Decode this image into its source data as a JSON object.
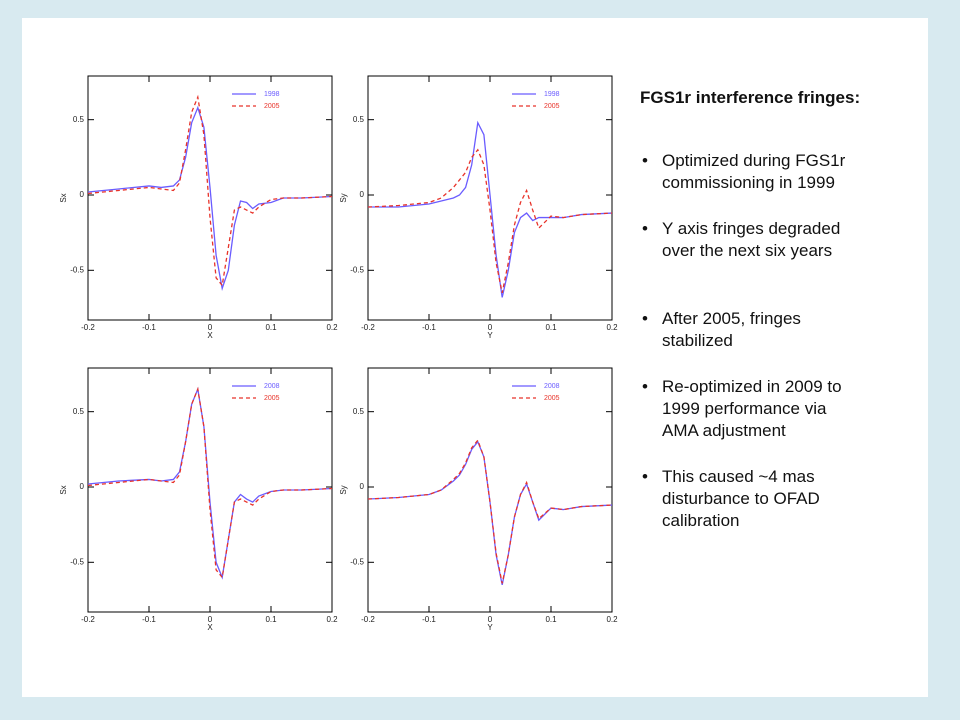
{
  "chart_data": [
    {
      "type": "line",
      "xlabel": "X",
      "ylabel": "Sx",
      "xlim": [
        -0.2,
        0.2
      ],
      "ylim": [
        -0.83,
        0.79
      ],
      "xticks": [
        -0.2,
        -0.1,
        0,
        0.1,
        0.2
      ],
      "yticks": [
        -0.5,
        0,
        0.5
      ],
      "legend": "upper right",
      "x": [
        -0.2,
        -0.15,
        -0.1,
        -0.08,
        -0.06,
        -0.05,
        -0.04,
        -0.03,
        -0.02,
        -0.01,
        0,
        0.01,
        0.02,
        0.03,
        0.04,
        0.05,
        0.06,
        0.07,
        0.08,
        0.1,
        0.12,
        0.15,
        0.2
      ],
      "series": [
        {
          "name": "1998",
          "color": "#6a5cff",
          "dashed": false,
          "values": [
            0.02,
            0.04,
            0.06,
            0.05,
            0.06,
            0.1,
            0.25,
            0.48,
            0.58,
            0.45,
            0.05,
            -0.4,
            -0.62,
            -0.5,
            -0.2,
            -0.04,
            -0.05,
            -0.09,
            -0.06,
            -0.05,
            -0.02,
            -0.02,
            -0.01
          ]
        },
        {
          "name": "2005",
          "color": "#e8332a",
          "dashed": true,
          "values": [
            0.01,
            0.03,
            0.05,
            0.04,
            0.03,
            0.08,
            0.3,
            0.55,
            0.65,
            0.4,
            -0.15,
            -0.55,
            -0.6,
            -0.35,
            -0.1,
            -0.08,
            -0.1,
            -0.12,
            -0.08,
            -0.03,
            -0.02,
            -0.02,
            -0.01
          ]
        }
      ]
    },
    {
      "type": "line",
      "xlabel": "Y",
      "ylabel": "Sy",
      "xlim": [
        -0.2,
        0.2
      ],
      "ylim": [
        -0.83,
        0.79
      ],
      "xticks": [
        -0.2,
        -0.1,
        0,
        0.1,
        0.2
      ],
      "yticks": [
        -0.5,
        0,
        0.5
      ],
      "legend": "upper right",
      "x": [
        -0.2,
        -0.15,
        -0.1,
        -0.08,
        -0.06,
        -0.05,
        -0.04,
        -0.03,
        -0.02,
        -0.01,
        0,
        0.01,
        0.02,
        0.03,
        0.04,
        0.05,
        0.06,
        0.07,
        0.08,
        0.1,
        0.12,
        0.15,
        0.2
      ],
      "series": [
        {
          "name": "1998",
          "color": "#6a5cff",
          "dashed": false,
          "values": [
            -0.08,
            -0.08,
            -0.06,
            -0.04,
            -0.02,
            0.0,
            0.05,
            0.2,
            0.48,
            0.4,
            0.0,
            -0.4,
            -0.68,
            -0.5,
            -0.25,
            -0.15,
            -0.12,
            -0.17,
            -0.15,
            -0.15,
            -0.15,
            -0.13,
            -0.12
          ]
        },
        {
          "name": "2005",
          "color": "#e8332a",
          "dashed": true,
          "values": [
            -0.08,
            -0.07,
            -0.05,
            -0.02,
            0.05,
            0.1,
            0.15,
            0.25,
            0.3,
            0.2,
            -0.1,
            -0.45,
            -0.65,
            -0.45,
            -0.2,
            -0.05,
            0.03,
            -0.1,
            -0.22,
            -0.14,
            -0.15,
            -0.13,
            -0.12
          ]
        }
      ]
    },
    {
      "type": "line",
      "xlabel": "X",
      "ylabel": "Sx",
      "xlim": [
        -0.2,
        0.2
      ],
      "ylim": [
        -0.83,
        0.79
      ],
      "xticks": [
        -0.2,
        -0.1,
        0,
        0.1,
        0.2
      ],
      "yticks": [
        -0.5,
        0,
        0.5
      ],
      "legend": "upper right",
      "x": [
        -0.2,
        -0.15,
        -0.1,
        -0.08,
        -0.06,
        -0.05,
        -0.04,
        -0.03,
        -0.02,
        -0.01,
        0,
        0.01,
        0.02,
        0.03,
        0.04,
        0.05,
        0.06,
        0.07,
        0.08,
        0.1,
        0.12,
        0.15,
        0.2
      ],
      "series": [
        {
          "name": "2008",
          "color": "#6a5cff",
          "dashed": false,
          "values": [
            0.02,
            0.04,
            0.05,
            0.04,
            0.05,
            0.1,
            0.3,
            0.55,
            0.65,
            0.4,
            -0.1,
            -0.5,
            -0.6,
            -0.35,
            -0.1,
            -0.05,
            -0.08,
            -0.1,
            -0.06,
            -0.03,
            -0.02,
            -0.02,
            -0.01
          ]
        },
        {
          "name": "2005",
          "color": "#e8332a",
          "dashed": true,
          "values": [
            0.01,
            0.03,
            0.05,
            0.04,
            0.03,
            0.08,
            0.3,
            0.55,
            0.65,
            0.4,
            -0.15,
            -0.55,
            -0.6,
            -0.35,
            -0.1,
            -0.08,
            -0.1,
            -0.12,
            -0.08,
            -0.03,
            -0.02,
            -0.02,
            -0.01
          ]
        }
      ]
    },
    {
      "type": "line",
      "xlabel": "Y",
      "ylabel": "Sy",
      "xlim": [
        -0.2,
        0.2
      ],
      "ylim": [
        -0.83,
        0.79
      ],
      "xticks": [
        -0.2,
        -0.1,
        0,
        0.1,
        0.2
      ],
      "yticks": [
        -0.5,
        0,
        0.5
      ],
      "legend": "upper right",
      "x": [
        -0.2,
        -0.15,
        -0.1,
        -0.08,
        -0.06,
        -0.05,
        -0.04,
        -0.03,
        -0.02,
        -0.01,
        0,
        0.01,
        0.02,
        0.03,
        0.04,
        0.05,
        0.06,
        0.07,
        0.08,
        0.1,
        0.12,
        0.15,
        0.2
      ],
      "series": [
        {
          "name": "2008",
          "color": "#6a5cff",
          "dashed": false,
          "values": [
            -0.08,
            -0.07,
            -0.05,
            -0.02,
            0.04,
            0.08,
            0.15,
            0.25,
            0.3,
            0.2,
            -0.1,
            -0.45,
            -0.65,
            -0.45,
            -0.2,
            -0.05,
            0.02,
            -0.1,
            -0.22,
            -0.14,
            -0.15,
            -0.13,
            -0.12
          ]
        },
        {
          "name": "2005",
          "color": "#e8332a",
          "dashed": true,
          "values": [
            -0.08,
            -0.07,
            -0.05,
            -0.02,
            0.05,
            0.09,
            0.16,
            0.26,
            0.31,
            0.2,
            -0.1,
            -0.44,
            -0.64,
            -0.45,
            -0.2,
            -0.05,
            0.03,
            -0.1,
            -0.21,
            -0.14,
            -0.15,
            -0.13,
            -0.12
          ]
        }
      ]
    }
  ],
  "text": {
    "title": "FGS1r interference fringes:",
    "bullets": [
      [
        "Optimized during FGS1r",
        "commissioning in 1999"
      ],
      [
        "Y axis fringes degraded",
        "over the next six years"
      ],
      [
        "After 2005, fringes",
        "stabilized"
      ],
      [
        "Re-optimized in 2009 to",
        "1999 performance via",
        "AMA adjustment"
      ],
      [
        "This caused ~4 mas",
        "disturbance to OFAD",
        "calibration"
      ]
    ]
  }
}
